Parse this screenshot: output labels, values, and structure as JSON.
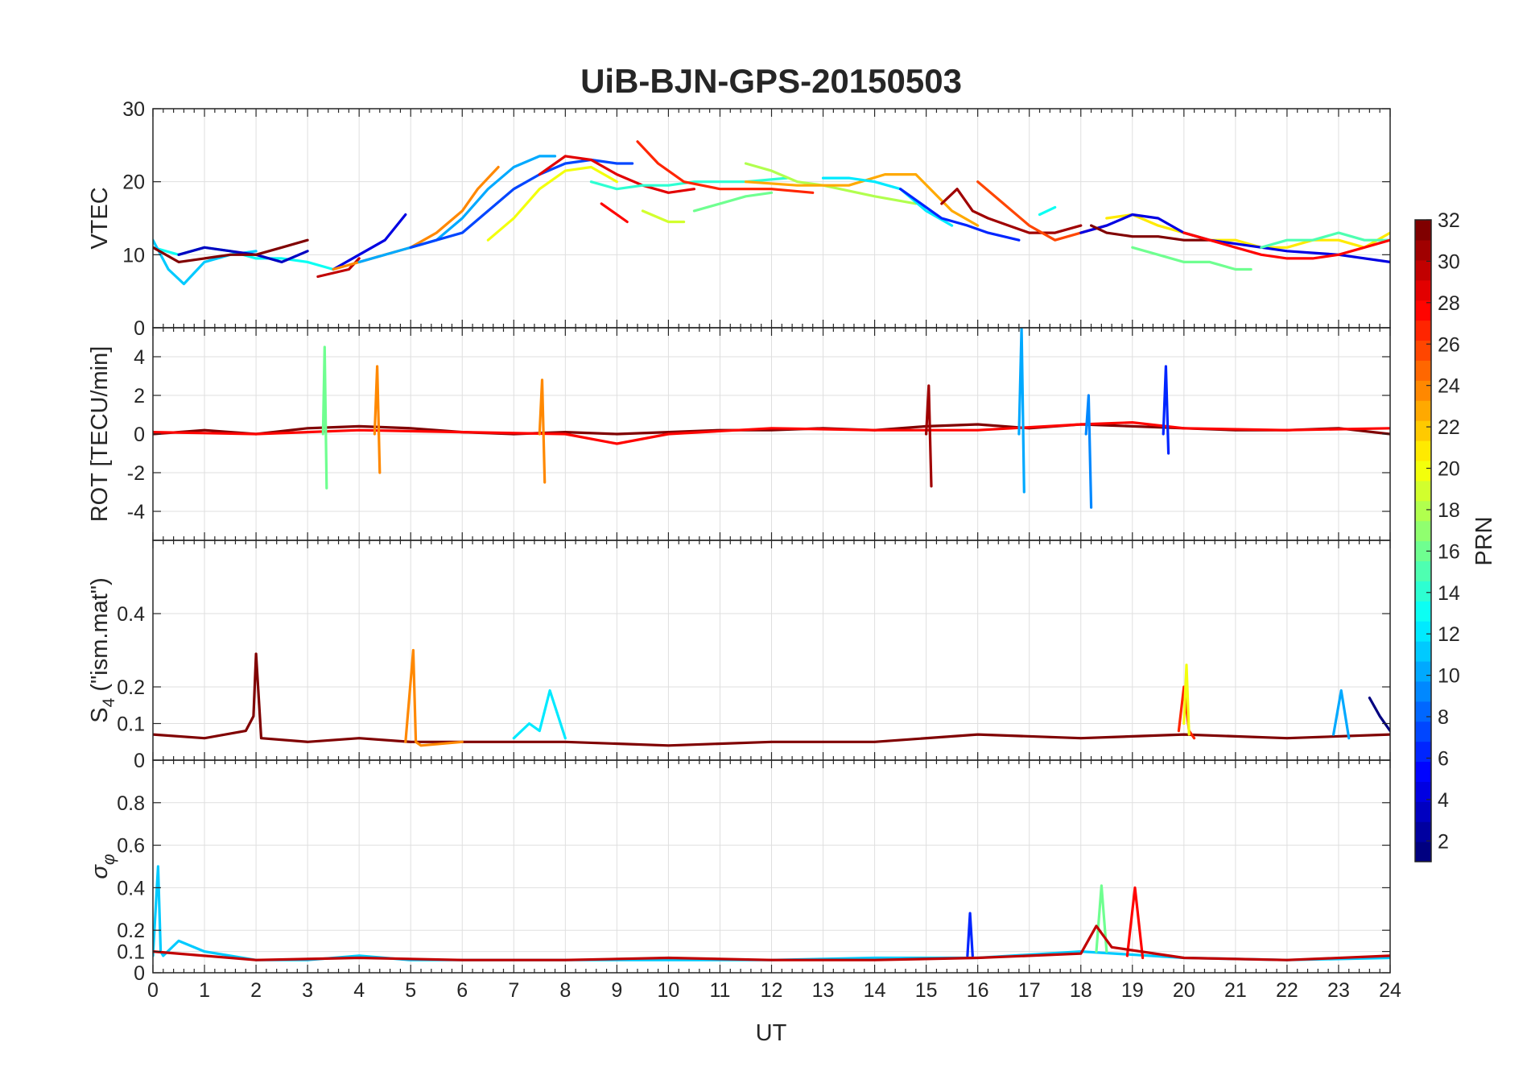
{
  "figure": {
    "title": "UiB-BJN-GPS-20150503",
    "xlabel": "UT",
    "x_ticks": [
      0,
      1,
      2,
      3,
      4,
      5,
      6,
      7,
      8,
      9,
      10,
      11,
      12,
      13,
      14,
      15,
      16,
      17,
      18,
      19,
      20,
      21,
      22,
      23,
      24
    ],
    "xlim": [
      0,
      24
    ]
  },
  "colorbar": {
    "label": "PRN",
    "ticks": [
      2,
      4,
      6,
      8,
      10,
      12,
      14,
      16,
      18,
      20,
      22,
      24,
      26,
      28,
      30,
      32
    ],
    "range": [
      1,
      32
    ],
    "colormap": "jet"
  },
  "chart_data": [
    {
      "type": "line",
      "ylabel": "VTEC",
      "ylim": [
        0,
        30
      ],
      "y_ticks": [
        0,
        10,
        20,
        30
      ],
      "y_tick_labels": [
        "0",
        "10",
        "20",
        "30"
      ],
      "grid": true,
      "series": [
        {
          "prn": 13,
          "x": [
            0,
            0.5,
            1,
            1.5,
            2,
            2.5,
            3,
            3.5
          ],
          "y": [
            11,
            10,
            11,
            10.5,
            9.5,
            9.5,
            9,
            8
          ]
        },
        {
          "prn": 11,
          "x": [
            0,
            0.3,
            0.6,
            1,
            1.5,
            2
          ],
          "y": [
            12,
            8,
            6,
            9,
            10,
            10.5
          ]
        },
        {
          "prn": 3,
          "x": [
            0.5,
            1,
            1.5,
            2,
            2.5,
            3
          ],
          "y": [
            10,
            11,
            10.5,
            10,
            9,
            10.5
          ]
        },
        {
          "prn": 32,
          "x": [
            0,
            0.5,
            1,
            1.5,
            2,
            2.5,
            3
          ],
          "y": [
            11,
            9,
            9.5,
            10,
            10,
            11,
            12
          ]
        },
        {
          "prn": 30,
          "x": [
            3.2,
            3.5,
            3.8,
            4
          ],
          "y": [
            7,
            7.5,
            8,
            9.5
          ]
        },
        {
          "prn": 4,
          "x": [
            3.5,
            4,
            4.5,
            4.9
          ],
          "y": [
            8,
            10,
            12,
            15.5
          ]
        },
        {
          "prn": 24,
          "x": [
            3.5,
            4,
            4.5,
            5,
            5.5,
            6,
            6.3,
            6.7
          ],
          "y": [
            8,
            9,
            10,
            11,
            13,
            16,
            19,
            22
          ]
        },
        {
          "prn": 10,
          "x": [
            4,
            5,
            5.5,
            6,
            6.5,
            7,
            7.5,
            7.8
          ],
          "y": [
            9,
            11,
            12,
            15,
            19,
            22,
            23.5,
            23.5
          ]
        },
        {
          "prn": 7,
          "x": [
            5,
            5.5,
            6,
            6.5,
            7,
            7.5,
            8,
            8.5,
            9,
            9.3
          ],
          "y": [
            11,
            12,
            13,
            16,
            19,
            21,
            22.5,
            23,
            22.5,
            22.5
          ]
        },
        {
          "prn": 29,
          "x": [
            7.5,
            8,
            8.5,
            9,
            9.5,
            10,
            10.5
          ],
          "y": [
            21,
            23.5,
            23,
            21,
            19.5,
            18.5,
            19
          ]
        },
        {
          "prn": 20,
          "x": [
            6.5,
            7,
            7.5,
            8,
            8.5,
            9
          ],
          "y": [
            12,
            15,
            19,
            21.5,
            22,
            20
          ]
        },
        {
          "prn": 14,
          "x": [
            8.5,
            9,
            9.5,
            10,
            10.5,
            11,
            11.5,
            12.3
          ],
          "y": [
            20,
            19,
            19.5,
            19.5,
            20,
            20,
            20,
            20.5
          ]
        },
        {
          "prn": 27,
          "x": [
            9.4,
            9.8,
            10.3,
            11,
            12,
            12.8
          ],
          "y": [
            25.5,
            22.5,
            20,
            19,
            19,
            18.5
          ]
        },
        {
          "prn": 28,
          "x": [
            8.7,
            9.2
          ],
          "y": [
            17,
            14.5
          ]
        },
        {
          "prn": 19,
          "x": [
            9.5,
            10,
            10.3
          ],
          "y": [
            16,
            14.5,
            14.5
          ]
        },
        {
          "prn": 16,
          "x": [
            10.5,
            11,
            11.5,
            12
          ],
          "y": [
            16,
            17,
            18,
            18.5
          ]
        },
        {
          "prn": 18,
          "x": [
            11.5,
            12,
            12.5,
            13,
            14,
            14.8
          ],
          "y": [
            22.5,
            21.5,
            20,
            19.5,
            18,
            17
          ]
        },
        {
          "prn": 23,
          "x": [
            11.5,
            12.5,
            13.5,
            14.2,
            14.8,
            15.5,
            16
          ],
          "y": [
            20,
            19.5,
            19.5,
            21,
            21,
            16,
            14
          ]
        },
        {
          "prn": 12,
          "x": [
            13,
            13.5,
            14,
            14.5,
            15,
            15.5
          ],
          "y": [
            20.5,
            20.5,
            20,
            19,
            16,
            14
          ]
        },
        {
          "prn": 6,
          "x": [
            14.5,
            15,
            15.3,
            15.8,
            16.2,
            16.8
          ],
          "y": [
            19,
            16.5,
            15,
            14,
            13,
            12
          ]
        },
        {
          "prn": 31,
          "x": [
            15.3,
            15.6,
            15.9,
            16.2,
            16.6,
            17,
            17.5,
            18
          ],
          "y": [
            17,
            19,
            16,
            15,
            14,
            13,
            13,
            14
          ]
        },
        {
          "prn": 26,
          "x": [
            16,
            16.5,
            17,
            17.5,
            18,
            18.5
          ],
          "y": [
            20,
            17,
            14,
            12,
            13,
            14
          ]
        },
        {
          "prn": 13,
          "x": [
            17.2,
            17.5
          ],
          "y": [
            15.5,
            16.5
          ]
        },
        {
          "prn": 21,
          "x": [
            18.5,
            19,
            19.5,
            20,
            20.5,
            21,
            21.5,
            22,
            22.5,
            23,
            23.5,
            24
          ],
          "y": [
            15,
            15.5,
            14,
            13,
            12,
            12,
            11,
            11,
            12,
            12,
            11,
            13
          ]
        },
        {
          "prn": 4,
          "x": [
            18,
            18.5,
            19,
            19.5,
            20,
            20.5,
            21,
            22,
            23,
            24
          ],
          "y": [
            13,
            14,
            15.5,
            15,
            13,
            12,
            11.5,
            10.5,
            10,
            9
          ]
        },
        {
          "prn": 16,
          "x": [
            19,
            19.5,
            20,
            20.5,
            21,
            21.3
          ],
          "y": [
            11,
            10,
            9,
            9,
            8,
            8
          ]
        },
        {
          "prn": 15,
          "x": [
            21.5,
            22,
            22.5,
            23,
            23.5,
            24
          ],
          "y": [
            11,
            12,
            12,
            13,
            12,
            12
          ]
        },
        {
          "prn": 32,
          "x": [
            18.2,
            18.5,
            19,
            19.5,
            20,
            20.5
          ],
          "y": [
            14,
            13,
            12.5,
            12.5,
            12,
            12
          ]
        },
        {
          "prn": 28,
          "x": [
            20,
            20.5,
            21,
            21.5,
            22,
            22.5,
            23,
            23.5,
            24
          ],
          "y": [
            13,
            12,
            11,
            10,
            9.5,
            9.5,
            10,
            11,
            12
          ]
        }
      ]
    },
    {
      "type": "line",
      "ylabel": "ROT [TECU/min]",
      "ylim": [
        -5.5,
        5.5
      ],
      "y_ticks": [
        -4,
        -2,
        0,
        2,
        4
      ],
      "y_tick_labels": [
        "-4",
        "-2",
        "0",
        "2",
        "4"
      ],
      "grid": true,
      "series": [
        {
          "prn": 32,
          "x": [
            0,
            1,
            2,
            3,
            4,
            5,
            6,
            7,
            8,
            9,
            10,
            11,
            12,
            13,
            14,
            15,
            16,
            17,
            18,
            19,
            20,
            21,
            22,
            23,
            24
          ],
          "y": [
            0,
            0.2,
            0,
            0.3,
            0.4,
            0.3,
            0.1,
            0,
            0.1,
            0,
            0.1,
            0.2,
            0.2,
            0.3,
            0.2,
            0.4,
            0.5,
            0.3,
            0.5,
            0.4,
            0.3,
            0.2,
            0.2,
            0.3,
            0
          ]
        },
        {
          "prn": 28,
          "x": [
            0,
            2,
            4,
            6,
            8,
            9,
            10,
            12,
            14,
            16,
            18,
            19,
            20,
            22,
            24
          ],
          "y": [
            0.1,
            0,
            0.2,
            0.1,
            0,
            -0.5,
            0,
            0.3,
            0.2,
            0.2,
            0.5,
            0.6,
            0.3,
            0.2,
            0.3
          ]
        },
        {
          "prn": 16,
          "x": [
            3.3,
            3.33,
            3.37
          ],
          "y": [
            0,
            4.5,
            -2.8
          ]
        },
        {
          "prn": 10,
          "x": [
            16.8,
            16.85,
            16.9
          ],
          "y": [
            0,
            5.5,
            -3
          ]
        },
        {
          "prn": 24,
          "x": [
            4.3,
            4.35,
            4.4
          ],
          "y": [
            0,
            3.5,
            -2
          ]
        },
        {
          "prn": 24,
          "x": [
            7.5,
            7.55,
            7.6
          ],
          "y": [
            0,
            2.8,
            -2.5
          ]
        },
        {
          "prn": 9,
          "x": [
            18.1,
            18.15,
            18.2
          ],
          "y": [
            0,
            2,
            -3.8
          ]
        },
        {
          "prn": 6,
          "x": [
            19.6,
            19.65,
            19.7
          ],
          "y": [
            0,
            3.5,
            -1
          ]
        },
        {
          "prn": 31,
          "x": [
            15,
            15.05,
            15.1
          ],
          "y": [
            0,
            2.5,
            -2.7
          ]
        }
      ]
    },
    {
      "type": "line",
      "ylabel": "S4 (\"ism.mat\")",
      "ylim": [
        0,
        0.6
      ],
      "y_ticks": [
        0,
        0.1,
        0.2,
        0.4
      ],
      "y_tick_labels": [
        "0",
        "0.1",
        "0.2",
        "0.4"
      ],
      "grid": true,
      "series": [
        {
          "prn": 32,
          "x": [
            0,
            1,
            1.8,
            1.95,
            2,
            2.1,
            3,
            4,
            5,
            6,
            8,
            10,
            12,
            14,
            16,
            18,
            20,
            22,
            24
          ],
          "y": [
            0.07,
            0.06,
            0.08,
            0.12,
            0.29,
            0.06,
            0.05,
            0.06,
            0.05,
            0.05,
            0.05,
            0.04,
            0.05,
            0.05,
            0.07,
            0.06,
            0.07,
            0.06,
            0.07
          ]
        },
        {
          "prn": 24,
          "x": [
            4.9,
            5.05,
            5.1,
            5.2,
            6
          ],
          "y": [
            0.05,
            0.3,
            0.05,
            0.04,
            0.05
          ]
        },
        {
          "prn": 27,
          "x": [
            19.9,
            20,
            20.1,
            20.2
          ],
          "y": [
            0.08,
            0.2,
            0.08,
            0.06
          ]
        },
        {
          "prn": 12,
          "x": [
            7,
            7.3,
            7.5,
            7.7,
            8
          ],
          "y": [
            0.06,
            0.1,
            0.08,
            0.19,
            0.06
          ]
        },
        {
          "prn": 20,
          "x": [
            20,
            20.05,
            20.1
          ],
          "y": [
            0.1,
            0.26,
            0.07
          ]
        },
        {
          "prn": 10,
          "x": [
            22.9,
            23.05,
            23.2
          ],
          "y": [
            0.07,
            0.19,
            0.06
          ]
        },
        {
          "prn": 1,
          "x": [
            23.6,
            23.8,
            24
          ],
          "y": [
            0.17,
            0.12,
            0.08
          ]
        }
      ]
    },
    {
      "type": "line",
      "ylabel": "σφ",
      "ylim": [
        0,
        1
      ],
      "y_ticks": [
        0,
        0.1,
        0.2,
        0.4,
        0.6,
        0.8
      ],
      "y_tick_labels": [
        "0",
        "0.1",
        "0.2",
        "0.4",
        "0.6",
        "0.8"
      ],
      "grid": true,
      "series": [
        {
          "prn": 11,
          "x": [
            0,
            0.1,
            0.15,
            0.2,
            0.5,
            1,
            2,
            3,
            4,
            5,
            6,
            8,
            10,
            12,
            14,
            16,
            18,
            20,
            22,
            24
          ],
          "y": [
            0.08,
            0.5,
            0.1,
            0.08,
            0.15,
            0.1,
            0.06,
            0.06,
            0.08,
            0.06,
            0.06,
            0.06,
            0.06,
            0.06,
            0.07,
            0.07,
            0.1,
            0.07,
            0.06,
            0.07
          ]
        },
        {
          "prn": 28,
          "x": [
            18.9,
            19.05,
            19.2
          ],
          "y": [
            0.08,
            0.4,
            0.07
          ]
        },
        {
          "prn": 16,
          "x": [
            18.3,
            18.4,
            18.5
          ],
          "y": [
            0.1,
            0.41,
            0.1
          ]
        },
        {
          "prn": 6,
          "x": [
            15.8,
            15.85,
            15.9
          ],
          "y": [
            0.08,
            0.28,
            0.08
          ]
        },
        {
          "prn": 30,
          "x": [
            0,
            2,
            4,
            6,
            8,
            10,
            12,
            14,
            16,
            18,
            18.3,
            18.6,
            20,
            22,
            24
          ],
          "y": [
            0.1,
            0.06,
            0.07,
            0.06,
            0.06,
            0.07,
            0.06,
            0.06,
            0.07,
            0.09,
            0.22,
            0.12,
            0.07,
            0.06,
            0.08
          ]
        }
      ]
    }
  ]
}
